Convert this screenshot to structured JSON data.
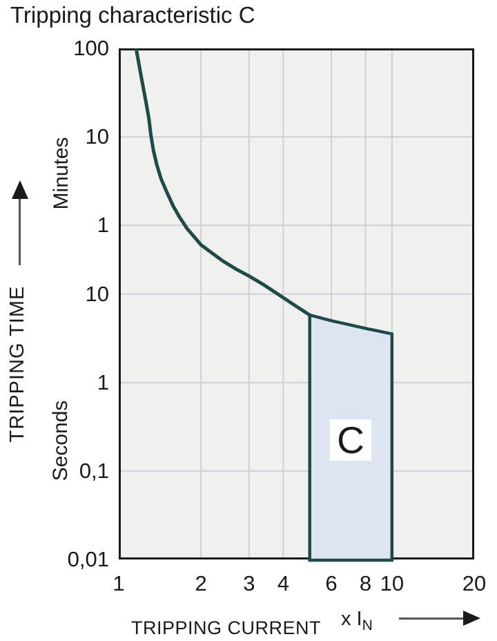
{
  "title": "Tripping characteristic C",
  "colors": {
    "teal": "#1e4a48",
    "band_fill": "#dee5f2",
    "plot_bg": "#f0f0ef",
    "grid": "#d0d0d3",
    "frame": "#1a1a1a",
    "text": "#1a1a1a"
  },
  "chart_data": {
    "type": "line",
    "title": "Tripping characteristic C",
    "x_axis": {
      "label": "TRIPPING CURRENT",
      "multiplier_prefix": "x I",
      "multiplier_sub": "N",
      "scale": "log",
      "min": 1,
      "max": 20,
      "ticks": [
        {
          "label": "1",
          "value": 1,
          "grid": false
        },
        {
          "label": "2",
          "value": 2,
          "grid": true
        },
        {
          "label": "3",
          "value": 3,
          "grid": true
        },
        {
          "label": "4",
          "value": 4,
          "grid": true
        },
        {
          "label": "6",
          "value": 6,
          "grid": true
        },
        {
          "label": "8",
          "value": 8,
          "grid": true
        },
        {
          "label": "10",
          "value": 10,
          "grid": true
        },
        {
          "label": "20",
          "value": 20,
          "grid": false
        }
      ]
    },
    "y_axis": {
      "label": "TRIPPING TIME",
      "scale": "log",
      "unit_minutes": "Minutes",
      "unit_seconds": "Seconds",
      "top_seconds": 6000,
      "bottom_seconds": 0.01,
      "ticks": [
        {
          "label": "100",
          "seconds": 6000,
          "unit": "min",
          "grid": false
        },
        {
          "label": "10",
          "seconds": 600,
          "unit": "min",
          "grid": true
        },
        {
          "label": "1",
          "seconds": 60,
          "unit": "min",
          "grid": true
        },
        {
          "label": "10",
          "seconds": 10,
          "unit": "s",
          "grid": true
        },
        {
          "label": "1",
          "seconds": 1,
          "unit": "s",
          "grid": true
        },
        {
          "label": "0,1",
          "seconds": 0.1,
          "unit": "s",
          "grid": true
        },
        {
          "label": "0,01",
          "seconds": 0.01,
          "unit": "s",
          "grid": false
        }
      ]
    },
    "curve": {
      "name": "tripping-curve",
      "points_current_vs_seconds": [
        [
          1.157,
          6000
        ],
        [
          1.18,
          4300
        ],
        [
          1.2,
          3250
        ],
        [
          1.23,
          2150
        ],
        [
          1.26,
          1450
        ],
        [
          1.29,
          950
        ],
        [
          1.31,
          640
        ],
        [
          1.34,
          420
        ],
        [
          1.38,
          285
        ],
        [
          1.43,
          200
        ],
        [
          1.5,
          142
        ],
        [
          1.58,
          100
        ],
        [
          1.67,
          74
        ],
        [
          1.78,
          55
        ],
        [
          1.9,
          43.5
        ],
        [
          2.0,
          36
        ],
        [
          2.2,
          29
        ],
        [
          2.4,
          23.8
        ],
        [
          2.7,
          19
        ],
        [
          3.0,
          16
        ],
        [
          3.4,
          12.7
        ],
        [
          3.9,
          9.6
        ],
        [
          4.4,
          7.5
        ],
        [
          5.0,
          5.8
        ]
      ]
    },
    "trip_band": {
      "label": "C",
      "from_multiple": 5,
      "to_multiple": 10,
      "top_points_current_vs_seconds": [
        [
          5.0,
          5.8
        ],
        [
          6.0,
          5.0
        ],
        [
          7.0,
          4.5
        ],
        [
          8.0,
          4.1
        ],
        [
          9.0,
          3.8
        ],
        [
          10.0,
          3.55
        ]
      ]
    }
  }
}
